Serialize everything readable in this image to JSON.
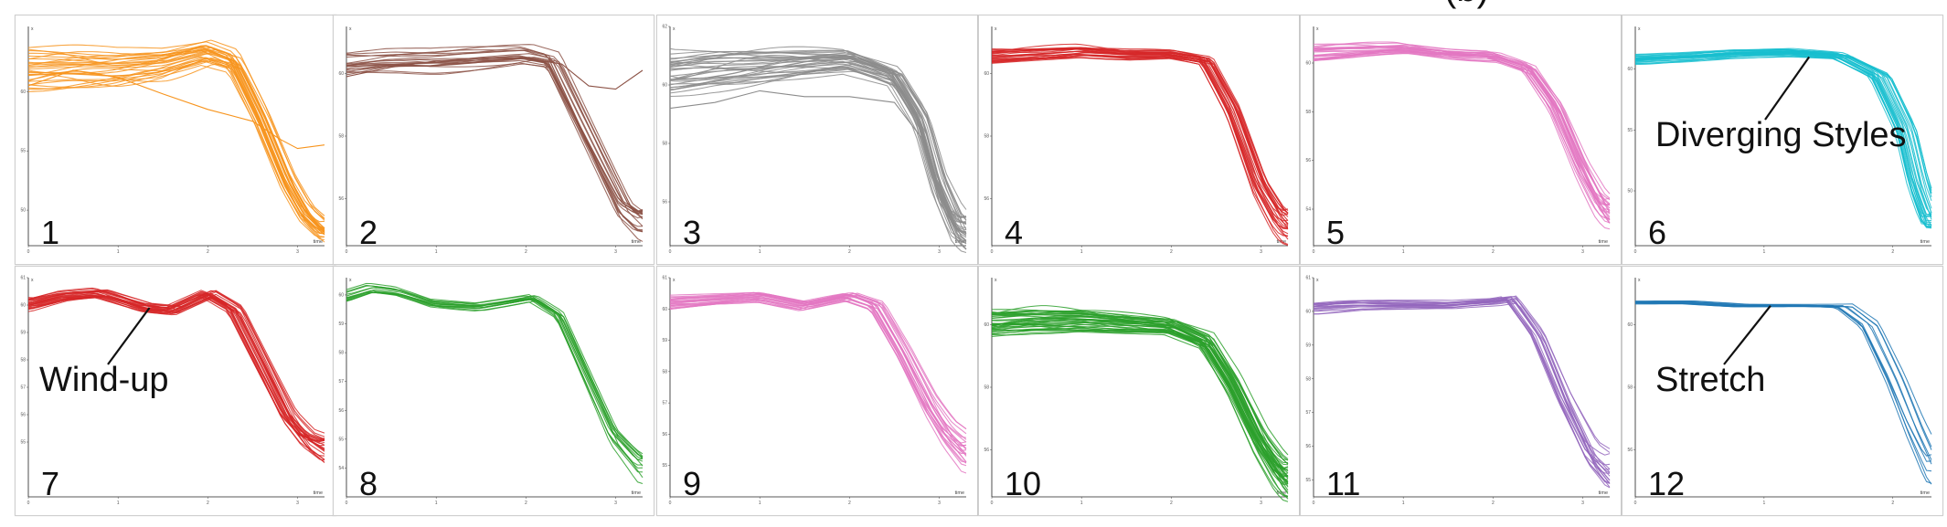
{
  "top_fragment": "(b)",
  "chart_data": [
    {
      "type": "line",
      "panel_label": "1",
      "color": "#f7941d",
      "xlabel": "time",
      "ylabel": "x",
      "xticks": [
        "0",
        "1",
        "2",
        "3"
      ],
      "yticks": [
        "50",
        "55",
        "60"
      ],
      "xlim": [
        0,
        3.3
      ],
      "ylim": [
        47,
        65.5
      ],
      "profile": [
        [
          0,
          62.2
        ],
        [
          0.5,
          62.3
        ],
        [
          1,
          62.2
        ],
        [
          1.5,
          62.5
        ],
        [
          2,
          63.4
        ],
        [
          2.3,
          62.6
        ],
        [
          2.6,
          58.0
        ],
        [
          2.9,
          52.5
        ],
        [
          3.1,
          49.8
        ],
        [
          3.3,
          48.3
        ]
      ],
      "outlier": [
        [
          0,
          60.5
        ],
        [
          0.5,
          61.8
        ],
        [
          1,
          61.2
        ],
        [
          1.5,
          59.8
        ],
        [
          2,
          58.5
        ],
        [
          2.5,
          57.5
        ],
        [
          2.8,
          56.0
        ],
        [
          3.0,
          55.2
        ],
        [
          3.3,
          55.5
        ]
      ],
      "n_lines": 28,
      "spread": 1.8
    },
    {
      "type": "line",
      "panel_label": "2",
      "color": "#8c5246",
      "xlabel": "time",
      "ylabel": "x",
      "xticks": [
        "0",
        "1",
        "2",
        "3"
      ],
      "yticks": [
        "56",
        "58",
        "60"
      ],
      "xlim": [
        0,
        3.3
      ],
      "ylim": [
        54.5,
        61.5
      ],
      "profile": [
        [
          0,
          60.3
        ],
        [
          0.5,
          60.4
        ],
        [
          1,
          60.4
        ],
        [
          1.5,
          60.5
        ],
        [
          2,
          60.6
        ],
        [
          2.3,
          60.4
        ],
        [
          2.6,
          58.6
        ],
        [
          2.9,
          56.8
        ],
        [
          3.1,
          55.6
        ],
        [
          3.3,
          55.1
        ]
      ],
      "outlier": [
        [
          0,
          59.9
        ],
        [
          0.5,
          60.2
        ],
        [
          1,
          60.4
        ],
        [
          1.5,
          60.5
        ],
        [
          2,
          60.5
        ],
        [
          2.4,
          60.3
        ],
        [
          2.7,
          59.6
        ],
        [
          3.0,
          59.5
        ],
        [
          3.3,
          60.1
        ]
      ],
      "n_lines": 20,
      "spread": 0.45
    },
    {
      "type": "line",
      "panel_label": "3",
      "color": "#8c8c8c",
      "xlabel": "time",
      "ylabel": "x",
      "xticks": [
        "0",
        "1",
        "2",
        "3"
      ],
      "yticks": [
        "56",
        "58",
        "60",
        "62"
      ],
      "xlim": [
        0,
        3.3
      ],
      "ylim": [
        54.5,
        62
      ],
      "profile": [
        [
          0,
          60.3
        ],
        [
          0.5,
          60.5
        ],
        [
          1,
          60.6
        ],
        [
          1.5,
          60.7
        ],
        [
          2,
          60.8
        ],
        [
          2.5,
          60.3
        ],
        [
          2.8,
          58.8
        ],
        [
          3.0,
          56.6
        ],
        [
          3.2,
          55.2
        ],
        [
          3.3,
          55.0
        ]
      ],
      "outlier": [
        [
          0,
          59.2
        ],
        [
          0.5,
          59.4
        ],
        [
          1,
          59.8
        ],
        [
          1.5,
          59.6
        ],
        [
          2,
          59.6
        ],
        [
          2.5,
          59.4
        ],
        [
          2.8,
          58.2
        ],
        [
          3.0,
          56.0
        ],
        [
          3.2,
          55.0
        ]
      ],
      "n_lines": 34,
      "spread": 0.7
    },
    {
      "type": "line",
      "panel_label": "4",
      "color": "#d62728",
      "xlabel": "time",
      "ylabel": "x",
      "xticks": [
        "0",
        "1",
        "2",
        "3"
      ],
      "yticks": [
        "56",
        "58",
        "60"
      ],
      "xlim": [
        0,
        3.3
      ],
      "ylim": [
        54.5,
        61.5
      ],
      "profile": [
        [
          0,
          60.5
        ],
        [
          0.5,
          60.6
        ],
        [
          1,
          60.7
        ],
        [
          1.5,
          60.6
        ],
        [
          2,
          60.6
        ],
        [
          2.4,
          60.4
        ],
        [
          2.7,
          58.8
        ],
        [
          3.0,
          56.4
        ],
        [
          3.2,
          55.4
        ],
        [
          3.3,
          55.1
        ]
      ],
      "outlier": null,
      "n_lines": 26,
      "spread": 0.22
    },
    {
      "type": "line",
      "panel_label": "5",
      "color": "#e377c2",
      "xlabel": "time",
      "ylabel": "x",
      "xticks": [
        "0",
        "1",
        "2",
        "3"
      ],
      "yticks": [
        "54",
        "56",
        "58",
        "60"
      ],
      "xlim": [
        0,
        3.3
      ],
      "ylim": [
        52.5,
        61.5
      ],
      "profile": [
        [
          0,
          60.4
        ],
        [
          0.5,
          60.5
        ],
        [
          1,
          60.6
        ],
        [
          1.5,
          60.4
        ],
        [
          2,
          60.3
        ],
        [
          2.4,
          59.8
        ],
        [
          2.7,
          58.2
        ],
        [
          3.0,
          55.6
        ],
        [
          3.2,
          54.2
        ],
        [
          3.3,
          53.8
        ]
      ],
      "outlier": null,
      "n_lines": 24,
      "spread": 0.35
    },
    {
      "type": "line",
      "panel_label": "6",
      "color": "#17becf",
      "xlabel": "time",
      "ylabel": "x",
      "xticks": [
        "0",
        "1",
        "2"
      ],
      "yticks": [
        "50",
        "55",
        "60"
      ],
      "xlim": [
        0,
        2.3
      ],
      "ylim": [
        45.5,
        63.5
      ],
      "profile": [
        [
          0,
          60.8
        ],
        [
          0.4,
          61.0
        ],
        [
          0.8,
          61.3
        ],
        [
          1.2,
          61.4
        ],
        [
          1.6,
          61.1
        ],
        [
          1.9,
          59.5
        ],
        [
          2.1,
          55.0
        ],
        [
          2.2,
          50.5
        ],
        [
          2.3,
          47.5
        ]
      ],
      "outlier": null,
      "n_lines": 26,
      "spread": 0.4,
      "annotation": {
        "text": "Diverging Styles",
        "point": [
          1.35,
          61.0
        ]
      }
    },
    {
      "type": "line",
      "panel_label": "7",
      "color": "#d62728",
      "xlabel": "time",
      "ylabel": "x",
      "xticks": [
        "0",
        "1",
        "2",
        "3"
      ],
      "yticks": [
        "55",
        "56",
        "57",
        "58",
        "59",
        "60",
        "61"
      ],
      "xlim": [
        0,
        3.3
      ],
      "ylim": [
        53,
        61
      ],
      "profile": [
        [
          0,
          60.0
        ],
        [
          0.4,
          60.3
        ],
        [
          0.8,
          60.4
        ],
        [
          1.3,
          59.9
        ],
        [
          1.6,
          59.8
        ],
        [
          2.0,
          60.4
        ],
        [
          2.3,
          59.8
        ],
        [
          2.6,
          57.8
        ],
        [
          2.9,
          55.8
        ],
        [
          3.1,
          55.0
        ],
        [
          3.3,
          54.6
        ]
      ],
      "outlier": null,
      "n_lines": 26,
      "spread": 0.22,
      "annotation": {
        "text": "Wind-up",
        "point": [
          1.35,
          59.9
        ]
      }
    },
    {
      "type": "line",
      "panel_label": "8",
      "color": "#2ca02c",
      "xlabel": "time",
      "ylabel": "x",
      "xticks": [
        "0",
        "1",
        "2",
        "3"
      ],
      "yticks": [
        "54",
        "55",
        "56",
        "57",
        "58",
        "59",
        "60"
      ],
      "xlim": [
        0,
        3.3
      ],
      "ylim": [
        53,
        60.6
      ],
      "profile": [
        [
          0,
          59.9
        ],
        [
          0.3,
          60.2
        ],
        [
          0.6,
          60.1
        ],
        [
          1.0,
          59.7
        ],
        [
          1.5,
          59.6
        ],
        [
          2.1,
          59.9
        ],
        [
          2.4,
          59.3
        ],
        [
          2.7,
          57.2
        ],
        [
          3.0,
          55.1
        ],
        [
          3.3,
          54.0
        ]
      ],
      "outlier": null,
      "n_lines": 14,
      "spread": 0.2
    },
    {
      "type": "line",
      "panel_label": "9",
      "color": "#e377c2",
      "xlabel": "time",
      "ylabel": "x",
      "xticks": [
        "0",
        "1",
        "2",
        "3"
      ],
      "yticks": [
        "55",
        "56",
        "57",
        "58",
        "59",
        "60",
        "61"
      ],
      "xlim": [
        0,
        3.3
      ],
      "ylim": [
        54,
        61
      ],
      "profile": [
        [
          0,
          60.2
        ],
        [
          0.5,
          60.3
        ],
        [
          1.0,
          60.4
        ],
        [
          1.5,
          60.1
        ],
        [
          2.0,
          60.4
        ],
        [
          2.3,
          60.1
        ],
        [
          2.6,
          58.6
        ],
        [
          2.9,
          56.9
        ],
        [
          3.1,
          56.0
        ],
        [
          3.3,
          55.4
        ]
      ],
      "outlier": null,
      "n_lines": 22,
      "spread": 0.2
    },
    {
      "type": "line",
      "panel_label": "10",
      "color": "#2ca02c",
      "xlabel": "time",
      "ylabel": "x",
      "xticks": [
        "0",
        "1",
        "2",
        "3"
      ],
      "yticks": [
        "56",
        "58",
        "60"
      ],
      "xlim": [
        0,
        3.3
      ],
      "ylim": [
        54.5,
        61.5
      ],
      "profile": [
        [
          0,
          60.0
        ],
        [
          0.5,
          60.1
        ],
        [
          1.0,
          60.1
        ],
        [
          1.5,
          60.0
        ],
        [
          2.0,
          59.9
        ],
        [
          2.4,
          59.4
        ],
        [
          2.7,
          58.0
        ],
        [
          3.0,
          56.2
        ],
        [
          3.2,
          55.3
        ],
        [
          3.3,
          55.0
        ]
      ],
      "outlier": null,
      "n_lines": 40,
      "spread": 0.45
    },
    {
      "type": "line",
      "panel_label": "11",
      "color": "#9467bd",
      "xlabel": "time",
      "ylabel": "x",
      "xticks": [
        "0",
        "1",
        "2",
        "3"
      ],
      "yticks": [
        "55",
        "56",
        "57",
        "58",
        "59",
        "60",
        "61"
      ],
      "xlim": [
        0,
        3.3
      ],
      "ylim": [
        54.5,
        61
      ],
      "profile": [
        [
          0,
          60.1
        ],
        [
          0.5,
          60.2
        ],
        [
          1.0,
          60.2
        ],
        [
          1.5,
          60.2
        ],
        [
          2.0,
          60.3
        ],
        [
          2.2,
          60.4
        ],
        [
          2.5,
          59.3
        ],
        [
          2.8,
          57.4
        ],
        [
          3.1,
          55.8
        ],
        [
          3.3,
          55.3
        ]
      ],
      "outlier": null,
      "n_lines": 18,
      "spread": 0.18
    },
    {
      "type": "line",
      "panel_label": "12",
      "color": "#1f77b4",
      "xlabel": "time",
      "ylabel": "x",
      "xticks": [
        "0",
        "1",
        "2"
      ],
      "yticks": [
        "56",
        "58",
        "60"
      ],
      "xlim": [
        0,
        2.3
      ],
      "ylim": [
        54.5,
        61.5
      ],
      "profile": [
        [
          0,
          60.7
        ],
        [
          0.4,
          60.7
        ],
        [
          0.8,
          60.6
        ],
        [
          1.2,
          60.6
        ],
        [
          1.6,
          60.6
        ],
        [
          1.8,
          60.0
        ],
        [
          2.0,
          58.3
        ],
        [
          2.15,
          56.8
        ],
        [
          2.3,
          55.5
        ]
      ],
      "outlier": null,
      "n_lines": 10,
      "spread": 0.05,
      "annotation": {
        "text": "Stretch",
        "point": [
          1.05,
          60.6
        ]
      }
    }
  ]
}
